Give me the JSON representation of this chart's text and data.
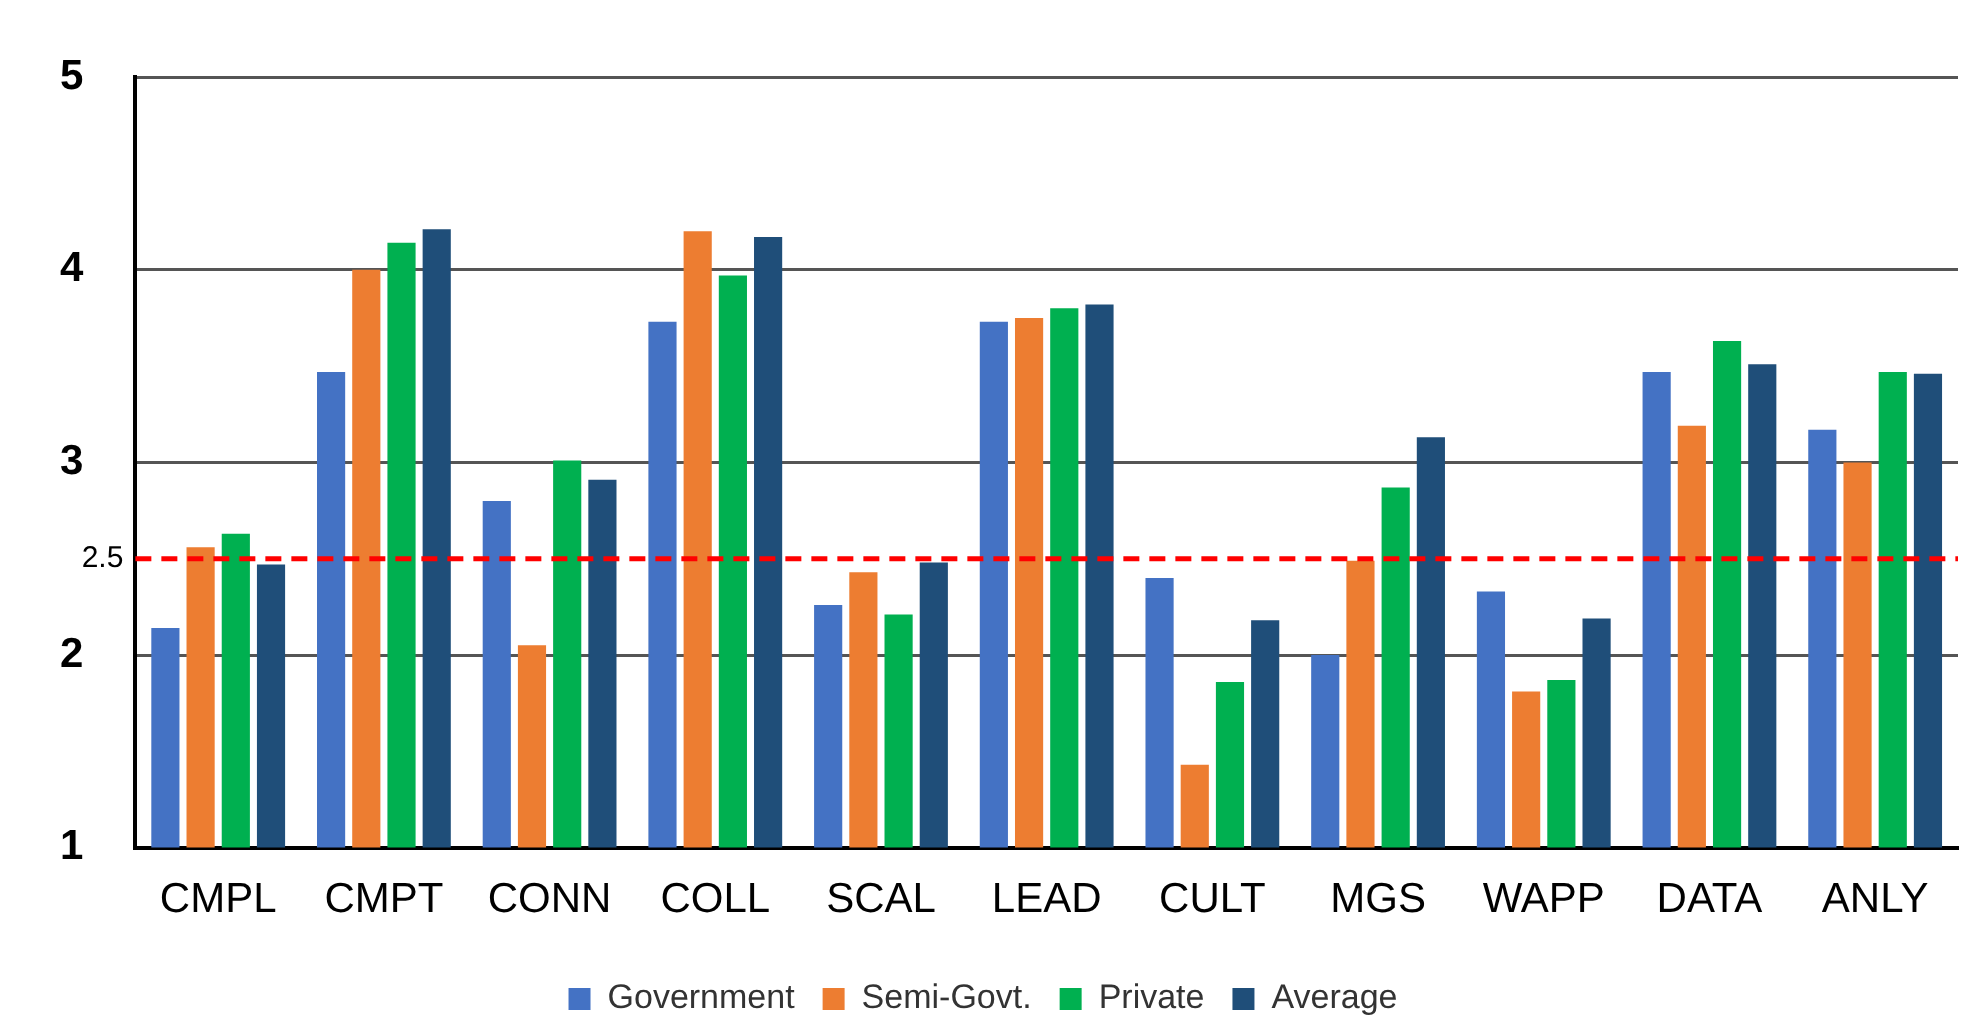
{
  "chart_data": {
    "type": "bar",
    "categories": [
      "CMPL",
      "CMPT",
      "CONN",
      "COLL",
      "SCAL",
      "LEAD",
      "CULT",
      "MGS",
      "WAPP",
      "DATA",
      "ANLY"
    ],
    "series": [
      {
        "name": "Government",
        "color": "#4472c4",
        "values": [
          2.14,
          3.47,
          2.8,
          3.73,
          2.26,
          3.73,
          2.4,
          2.0,
          2.33,
          3.47,
          3.17
        ]
      },
      {
        "name": "Semi-Govt.",
        "color": "#ed7d31",
        "values": [
          2.56,
          4.0,
          2.05,
          4.2,
          2.43,
          3.75,
          1.43,
          2.49,
          1.81,
          3.19,
          3.0
        ]
      },
      {
        "name": "Private",
        "color": "#00b050",
        "values": [
          2.63,
          4.14,
          3.01,
          3.97,
          2.21,
          3.8,
          1.86,
          2.87,
          1.87,
          3.63,
          3.47
        ]
      },
      {
        "name": "Average",
        "color": "#1f4e79",
        "values": [
          2.47,
          4.21,
          2.91,
          4.17,
          2.48,
          3.82,
          2.18,
          3.13,
          2.19,
          3.51,
          3.46
        ]
      }
    ],
    "ylim": [
      1,
      5
    ],
    "yticks": [
      1,
      2,
      3,
      4,
      5
    ],
    "grid": "y",
    "legend": "bottom",
    "ref_lines": [
      {
        "axis": "y",
        "value": 2.5,
        "label": "2.5",
        "color": "#ff0000",
        "line_style": "dashed"
      }
    ]
  }
}
